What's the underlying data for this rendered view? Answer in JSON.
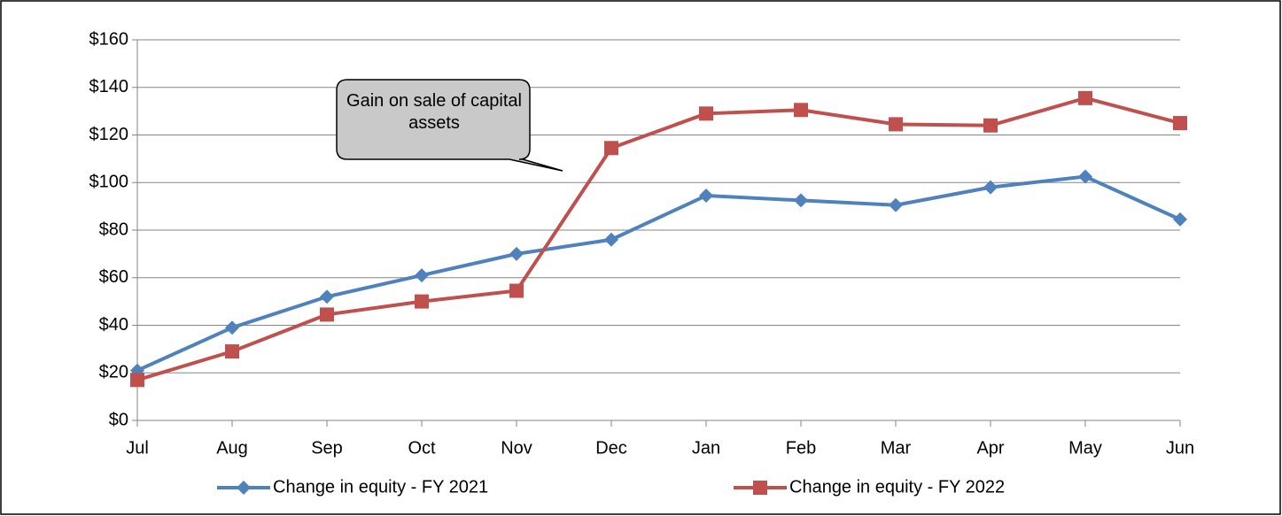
{
  "chart_data": {
    "type": "line",
    "categories": [
      "Jul",
      "Aug",
      "Sep",
      "Oct",
      "Nov",
      "Dec",
      "Jan",
      "Feb",
      "Mar",
      "Apr",
      "May",
      "Jun"
    ],
    "series": [
      {
        "name": "Change in equity - FY 2021",
        "color": "#4f81bd",
        "marker": "diamond",
        "values": [
          21,
          39,
          52,
          61,
          70,
          76,
          94.5,
          92.5,
          90.5,
          98,
          102.5,
          84.5
        ]
      },
      {
        "name": "Change in equity - FY 2022",
        "color": "#c0504d",
        "marker": "square",
        "values": [
          17,
          29,
          44.5,
          50,
          54.5,
          114.5,
          129,
          130.5,
          124.5,
          124,
          135.5,
          125
        ]
      }
    ],
    "ylim": [
      0,
      160
    ],
    "yticks": [
      {
        "value": 0,
        "label": "$0"
      },
      {
        "value": 20,
        "label": "$20"
      },
      {
        "value": 40,
        "label": "$40"
      },
      {
        "value": 60,
        "label": "$60"
      },
      {
        "value": 80,
        "label": "$80"
      },
      {
        "value": 100,
        "label": "$100"
      },
      {
        "value": 120,
        "label": "$120"
      },
      {
        "value": 140,
        "label": "$140"
      },
      {
        "value": 160,
        "label": "$160"
      }
    ],
    "grid": true,
    "legend": "bottom",
    "annotation": "Gain on sale of capital assets"
  }
}
